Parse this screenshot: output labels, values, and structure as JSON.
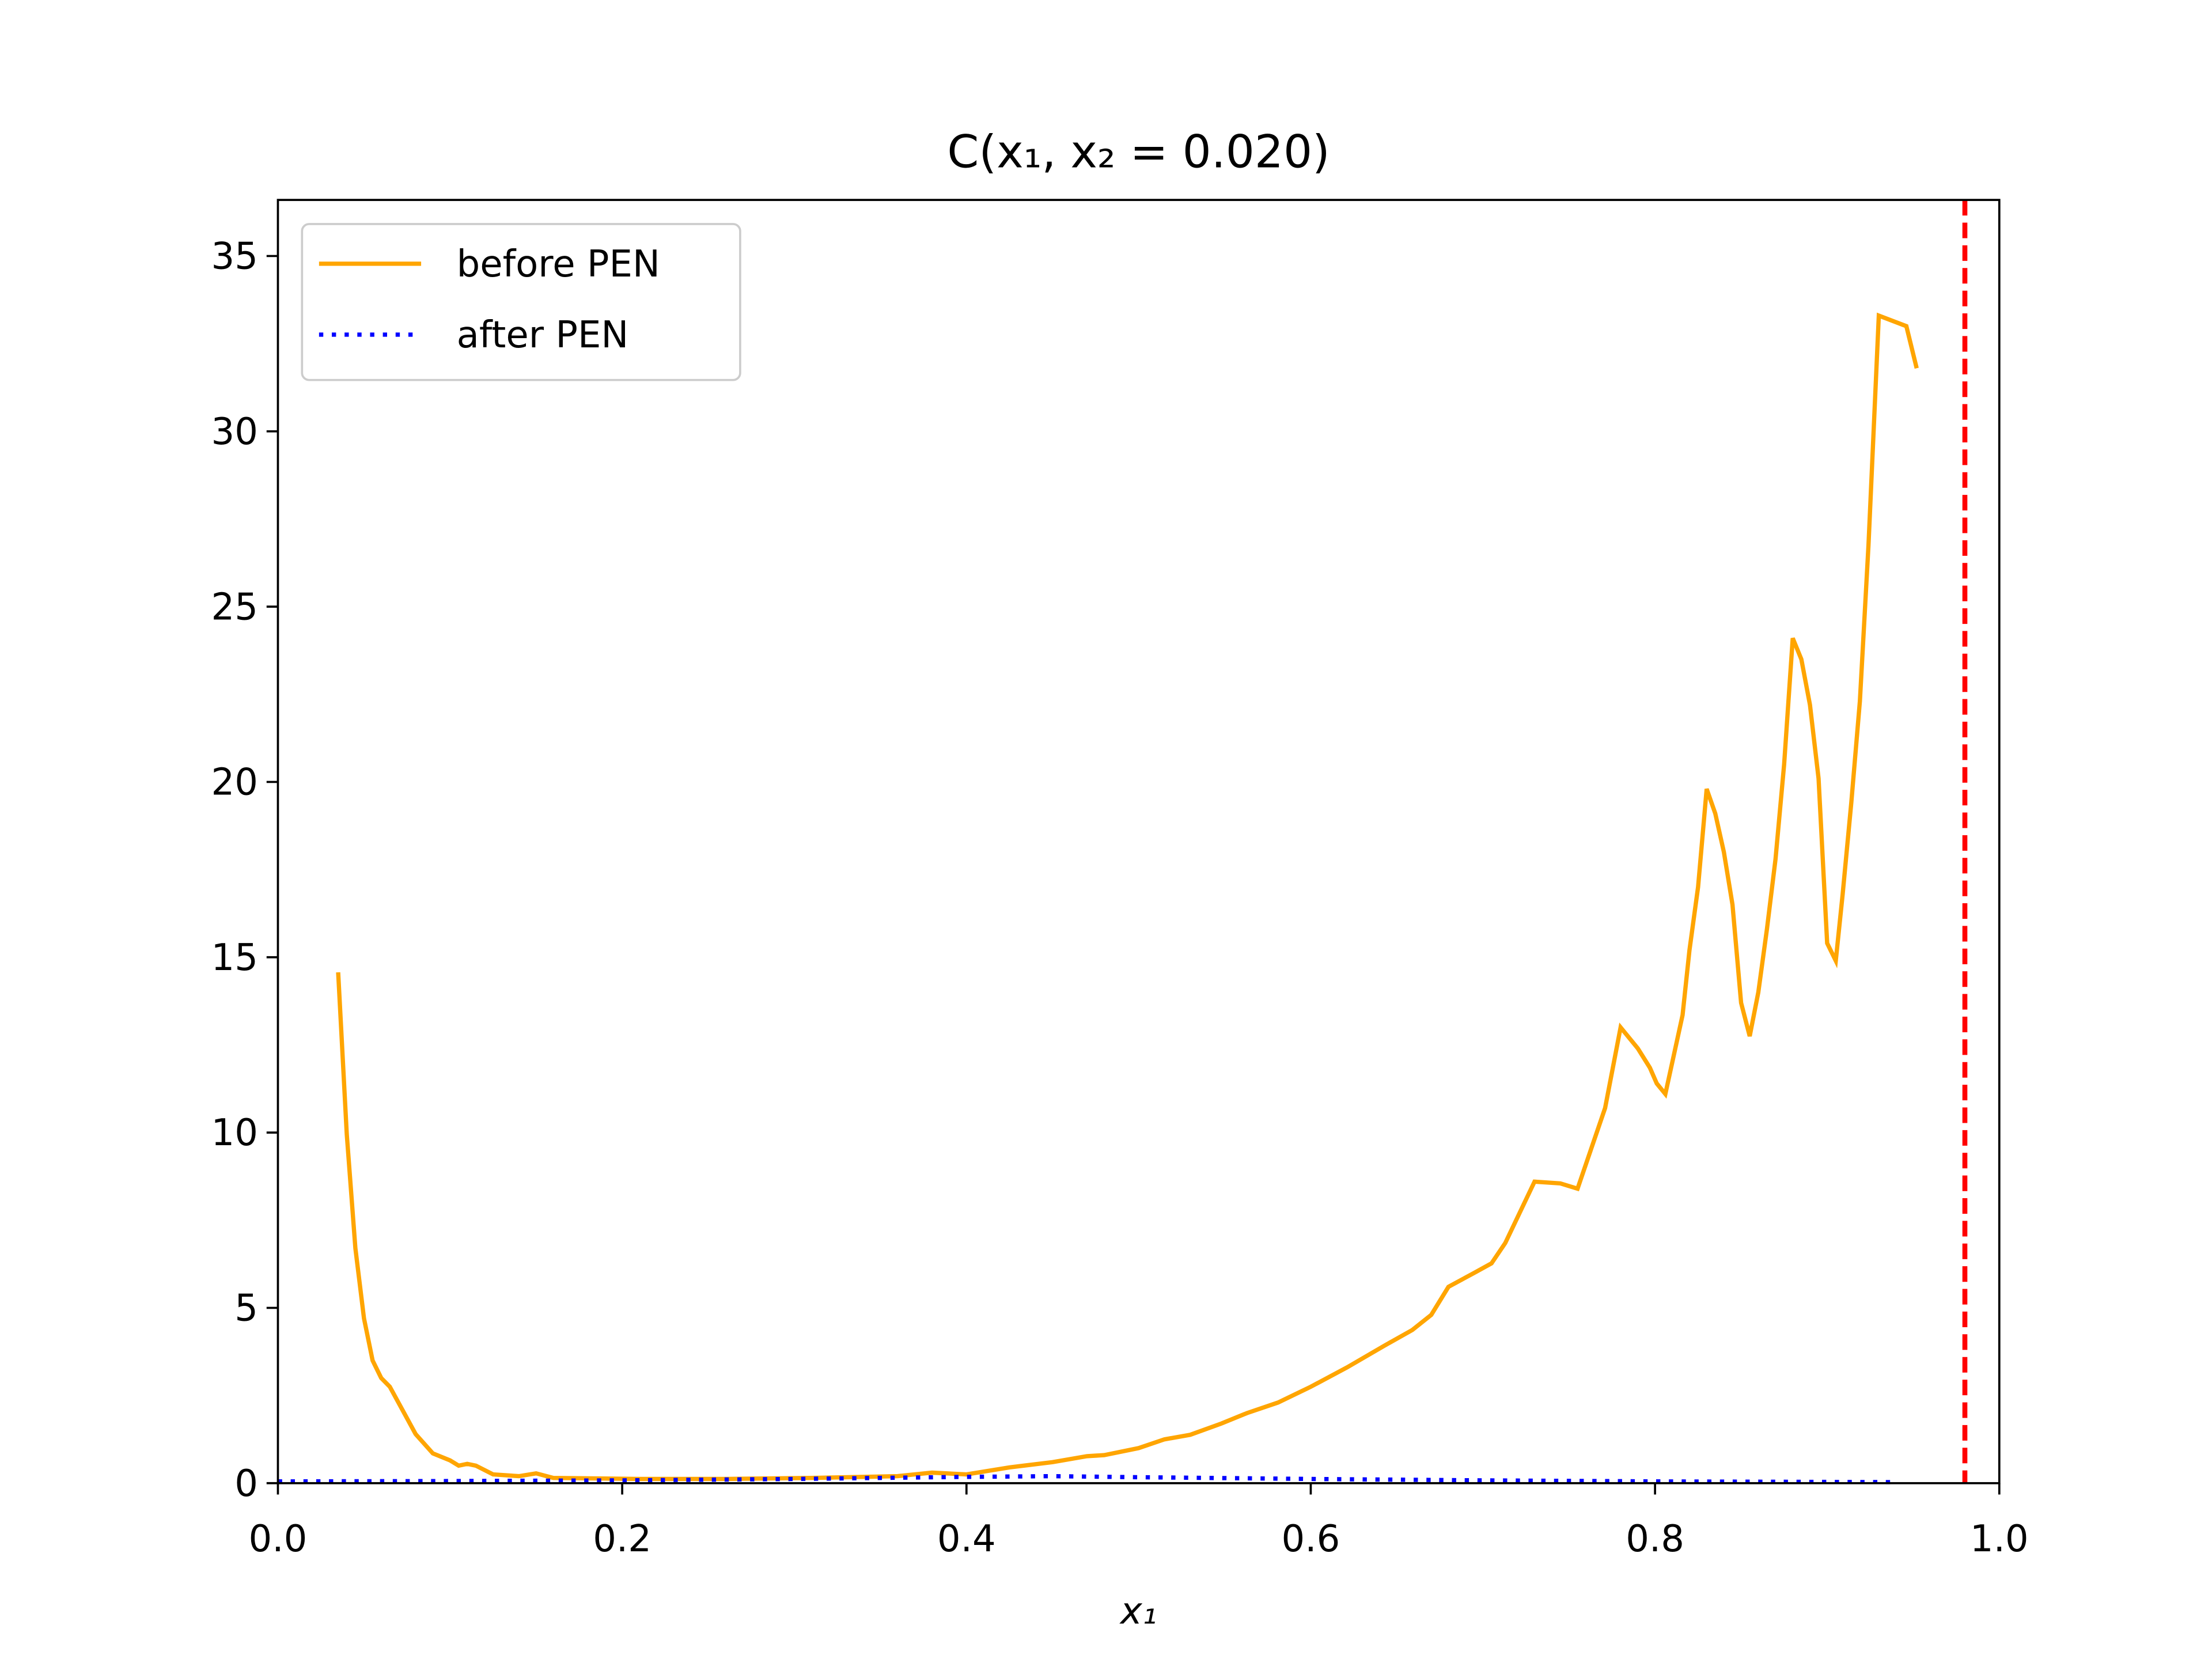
{
  "chart_data": {
    "type": "line",
    "title": "C(x₁, x₂ = 0.020)",
    "xlabel": "x₁",
    "xlim": [
      0,
      1
    ],
    "xticks": [
      {
        "value": 0,
        "label": "0.0"
      },
      0.2,
      0.4,
      0.6,
      0.8,
      {
        "value": 1,
        "label": "1.0"
      }
    ],
    "ylim": [
      0,
      36.6
    ],
    "yticks": [
      0,
      5,
      10,
      15,
      20,
      25,
      30,
      35
    ],
    "legend": "upper left",
    "vline": {
      "x": 0.98,
      "color": "#ff0000",
      "linestyle": "dashed"
    },
    "series": [
      {
        "name": "before PEN",
        "color": "#ffa500",
        "linestyle": "solid",
        "x": [
          0.035,
          0.04,
          0.045,
          0.05,
          0.055,
          0.06,
          0.065,
          0.08,
          0.09,
          0.1,
          0.105,
          0.11,
          0.115,
          0.125,
          0.14,
          0.15,
          0.16,
          0.21,
          0.26,
          0.31,
          0.36,
          0.38,
          0.4,
          0.425,
          0.45,
          0.47,
          0.48,
          0.5,
          0.515,
          0.53,
          0.548,
          0.563,
          0.581,
          0.6,
          0.621,
          0.642,
          0.659,
          0.67,
          0.68,
          0.695,
          0.705,
          0.713,
          0.73,
          0.745,
          0.755,
          0.771,
          0.78,
          0.79,
          0.797,
          0.801,
          0.806,
          0.816,
          0.82,
          0.825,
          0.83,
          0.835,
          0.84,
          0.845,
          0.85,
          0.855,
          0.86,
          0.865,
          0.87,
          0.875,
          0.88,
          0.885,
          0.89,
          0.895,
          0.9,
          0.905,
          0.909,
          0.914,
          0.919,
          0.924,
          0.93,
          0.946,
          0.952
        ],
        "values": [
          14.57,
          9.95,
          6.7,
          4.7,
          3.5,
          3.0,
          2.75,
          1.4,
          0.85,
          0.65,
          0.5,
          0.55,
          0.5,
          0.25,
          0.2,
          0.28,
          0.15,
          0.12,
          0.12,
          0.15,
          0.2,
          0.3,
          0.25,
          0.45,
          0.6,
          0.77,
          0.8,
          1.0,
          1.25,
          1.38,
          1.7,
          2.0,
          2.3,
          2.75,
          3.3,
          3.9,
          4.37,
          4.8,
          5.6,
          6.0,
          6.27,
          6.85,
          8.6,
          8.55,
          8.4,
          10.7,
          13.0,
          12.4,
          11.85,
          11.4,
          11.1,
          13.35,
          15.2,
          17.0,
          19.8,
          19.1,
          18.0,
          16.5,
          13.7,
          12.75,
          14.0,
          15.8,
          17.8,
          20.5,
          24.1,
          23.5,
          22.2,
          20.1,
          15.4,
          14.9,
          16.8,
          19.4,
          22.3,
          26.75,
          33.3,
          33.0,
          31.8
        ]
      },
      {
        "name": "after PEN",
        "color": "#0000ff",
        "linestyle": "dotted",
        "x": [
          0,
          0.1,
          0.2,
          0.3,
          0.35,
          0.4,
          0.45,
          0.5,
          0.6,
          0.7,
          0.8,
          0.94
        ],
        "values": [
          0.05,
          0.06,
          0.08,
          0.12,
          0.15,
          0.18,
          0.2,
          0.17,
          0.12,
          0.08,
          0.05,
          0.03
        ]
      }
    ]
  }
}
